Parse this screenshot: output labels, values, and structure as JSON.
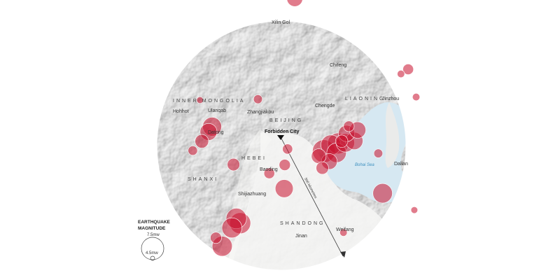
{
  "colors": {
    "land": "#e6e5e3",
    "plain": "#f3f3f2",
    "sea": "#d7e9f3",
    "quake_fill": "#c8102e",
    "quake_stroke": "#ffffff",
    "ring": "#ffffff"
  },
  "places": {
    "xilin_gol": "Xilin Gol",
    "chifeng": "Chifeng",
    "jinzhou": "Jinzhou",
    "chengde": "Chengde",
    "zhangjiakou": "Zhangjiakou",
    "ulanqab": "Ulanqab",
    "hohhot": "Hohhot",
    "datong": "Datong",
    "baoding": "Baoding",
    "shijiazhuang": "Shijiazhuang",
    "jinan": "Jinan",
    "weifang": "Weifang",
    "dalian": "Dalian"
  },
  "regions": {
    "inner_mongolia": "INNER MONGOLIA",
    "liaoning": "LIAONING",
    "beijing": "BEIJING",
    "hebei": "HEBEI",
    "shanxi": "SHANXI",
    "shandong": "SHANDONG"
  },
  "water": {
    "bohai_sea": "Bohai Sea"
  },
  "landmark": {
    "forbidden_city": "Forbidden City"
  },
  "distance_label": "500 kilometres",
  "legend": {
    "title_line1": "EARTHQUAKE",
    "title_line2": "MAGNITUDE",
    "large_label": "7.5mw",
    "small_label": "4.5mw"
  },
  "earthquakes": [
    {
      "lon": 116.92,
      "lat": 44.62,
      "mag": 6.2
    },
    {
      "lon": 113.24,
      "lat": 41.36,
      "mag": 4.7
    },
    {
      "lon": 113.57,
      "lat": 40.34,
      "mag": 6.4
    },
    {
      "lon": 113.71,
      "lat": 40.51,
      "mag": 6.8
    },
    {
      "lon": 114.54,
      "lat": 39.29,
      "mag": 5.6
    },
    {
      "lon": 113.31,
      "lat": 40.04,
      "mag": 5.8
    },
    {
      "lon": 112.96,
      "lat": 39.74,
      "mag": 5.1
    },
    {
      "lon": 115.49,
      "lat": 41.39,
      "mag": 5.0
    },
    {
      "lon": 116.64,
      "lat": 39.79,
      "mag": 5.2
    },
    {
      "lon": 116.53,
      "lat": 39.28,
      "mag": 5.4
    },
    {
      "lon": 116.51,
      "lat": 38.52,
      "mag": 6.6
    },
    {
      "lon": 115.93,
      "lat": 39.01,
      "mag": 5.3
    },
    {
      "lon": 114.65,
      "lat": 37.56,
      "mag": 7.1
    },
    {
      "lon": 114.8,
      "lat": 37.41,
      "mag": 7.2
    },
    {
      "lon": 114.48,
      "lat": 37.26,
      "mag": 7.0
    },
    {
      "lon": 114.1,
      "lat": 36.67,
      "mag": 7.0
    },
    {
      "lon": 113.86,
      "lat": 36.94,
      "mag": 5.4
    },
    {
      "lon": 118.05,
      "lat": 39.72,
      "mag": 7.6
    },
    {
      "lon": 118.32,
      "lat": 39.92,
      "mag": 7.0
    },
    {
      "lon": 118.6,
      "lat": 39.97,
      "mag": 7.2
    },
    {
      "lon": 118.88,
      "lat": 39.99,
      "mag": 6.7
    },
    {
      "lon": 118.93,
      "lat": 40.29,
      "mag": 6.3
    },
    {
      "lon": 119.36,
      "lat": 40.4,
      "mag": 6.3
    },
    {
      "lon": 119.23,
      "lat": 40.05,
      "mag": 6.5
    },
    {
      "lon": 118.26,
      "lat": 39.39,
      "mag": 6.2
    },
    {
      "lon": 117.85,
      "lat": 39.56,
      "mag": 6.0
    },
    {
      "lon": 117.99,
      "lat": 39.18,
      "mag": 5.6
    },
    {
      "lon": 118.54,
      "lat": 39.67,
      "mag": 6.9
    },
    {
      "lon": 118.74,
      "lat": 40.04,
      "mag": 5.6
    },
    {
      "lon": 119.02,
      "lat": 40.52,
      "mag": 5.3
    },
    {
      "lon": 121.32,
      "lat": 42.35,
      "mag": 5.3
    },
    {
      "lon": 121.04,
      "lat": 42.2,
      "mag": 4.8
    },
    {
      "lon": 121.63,
      "lat": 41.46,
      "mag": 4.8
    },
    {
      "lon": 120.16,
      "lat": 39.65,
      "mag": 5.0
    },
    {
      "lon": 120.33,
      "lat": 38.37,
      "mag": 6.9
    },
    {
      "lon": 118.81,
      "lat": 37.11,
      "mag": 4.8
    },
    {
      "lon": 121.56,
      "lat": 37.83,
      "mag": 4.7
    }
  ]
}
